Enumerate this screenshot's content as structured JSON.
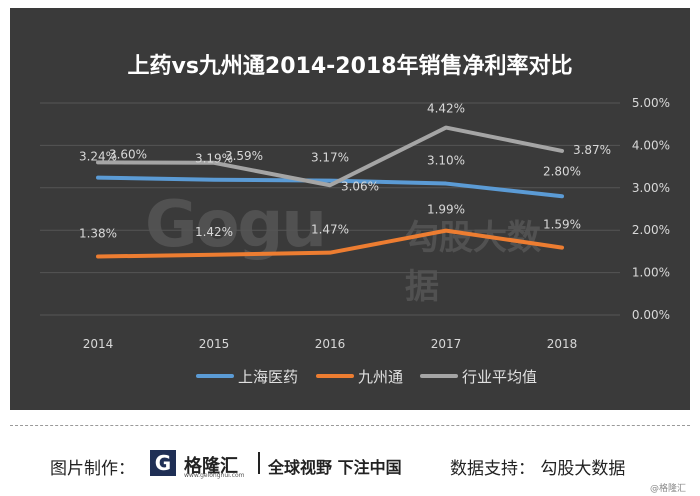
{
  "chart_data": {
    "type": "line",
    "title": "上药vs九州通2014-2018年销售净利率对比",
    "categories": [
      "2014",
      "2015",
      "2016",
      "2017",
      "2018"
    ],
    "ylim": [
      0,
      5
    ],
    "yticks": [
      "0.00%",
      "1.00%",
      "2.00%",
      "3.00%",
      "4.00%",
      "5.00%"
    ],
    "ytick_values": [
      0,
      1,
      2,
      3,
      4,
      5
    ],
    "grid": true,
    "legend_position": "bottom",
    "series": [
      {
        "name": "上海医药",
        "values": [
          3.24,
          3.19,
          3.17,
          3.1,
          2.8
        ],
        "labels": [
          "3.24%",
          "3.19%",
          "3.17%",
          "3.10%",
          "2.80%"
        ],
        "color": "#5b9bd5"
      },
      {
        "name": "九州通",
        "values": [
          1.38,
          1.42,
          1.47,
          1.99,
          1.59
        ],
        "labels": [
          "1.38%",
          "1.42%",
          "1.47%",
          "1.99%",
          "1.59%"
        ],
        "color": "#ed7d31"
      },
      {
        "name": "行业平均值",
        "values": [
          3.6,
          3.59,
          3.06,
          4.42,
          3.87
        ],
        "labels": [
          "3.60%",
          "3.59%",
          "3.06%",
          "4.42%",
          "3.87%"
        ],
        "color": "#a5a5a5"
      }
    ]
  },
  "watermark": {
    "logo": "Gogu",
    "text": "勾股大数据"
  },
  "footer": {
    "left_label": "图片制作：",
    "logo_glyph": "G",
    "logo_name": "格隆汇",
    "logo_url": "www.gelonghui.com",
    "slogan": "全球视野 下注中国",
    "right_label": "数据支持：",
    "right_value": "勾股大数据",
    "corner": "@格隆汇"
  }
}
